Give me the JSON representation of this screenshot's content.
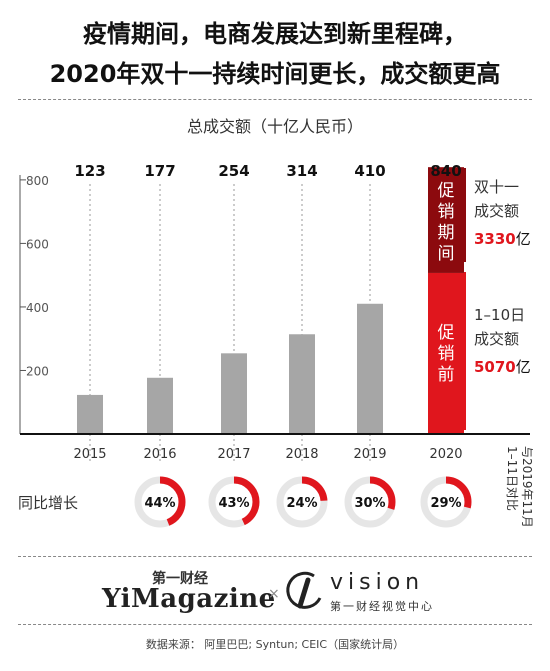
{
  "header": {
    "title_line1": "疫情期间，电商发展达到新里程碑，",
    "title_line2": "2020年双十一持续时间更长，成交额更高"
  },
  "chart_data": {
    "type": "bar",
    "title": "总成交额（十亿人民币）",
    "categories": [
      "2015",
      "2016",
      "2017",
      "2018",
      "2019",
      "2020"
    ],
    "values": [
      123,
      177,
      254,
      314,
      410,
      840
    ],
    "value_labels": [
      "123",
      "177",
      "254",
      "314",
      "410",
      "840"
    ],
    "ylim": [
      0,
      850
    ],
    "yticks": [
      "200",
      "400",
      "600",
      "800"
    ],
    "grid": true,
    "stacked_2020": {
      "bottom": {
        "name": "促销前",
        "value": 507,
        "color": "#e0161d"
      },
      "top": {
        "name": "促销期间",
        "value": 333,
        "color": "#8c0a0e"
      }
    },
    "annotations": {
      "double11": {
        "lines": [
          "双十一",
          "成交额"
        ],
        "amount": "3330",
        "unit": "亿"
      },
      "early": {
        "lines": [
          "1–10日",
          "成交额"
        ],
        "amount": "5070",
        "unit": "亿"
      },
      "promo_during_label": "促销期间",
      "promo_before_label": "促销前"
    },
    "growth": {
      "label": "同比增长",
      "values": [
        "44%",
        "43%",
        "24%",
        "30%",
        "29%"
      ],
      "fractions": [
        0.44,
        0.43,
        0.24,
        0.3,
        0.29
      ],
      "note": "1–11日对比与2019年11月"
    },
    "colors": {
      "bar": "#a6a6a6",
      "accent": "#e0161d",
      "dark_accent": "#8c0a0e",
      "ring_bg": "#e6e6e6"
    }
  },
  "footer": {
    "brand1_cn": "第一财经",
    "brand1_en": "YiMagazine",
    "brand_x": "×",
    "brand2_en": "vision",
    "brand2_cn": "第一财经视觉中心",
    "source": "数据来源：  阿里巴巴; Syntun; CEIC（国家统计局）"
  }
}
